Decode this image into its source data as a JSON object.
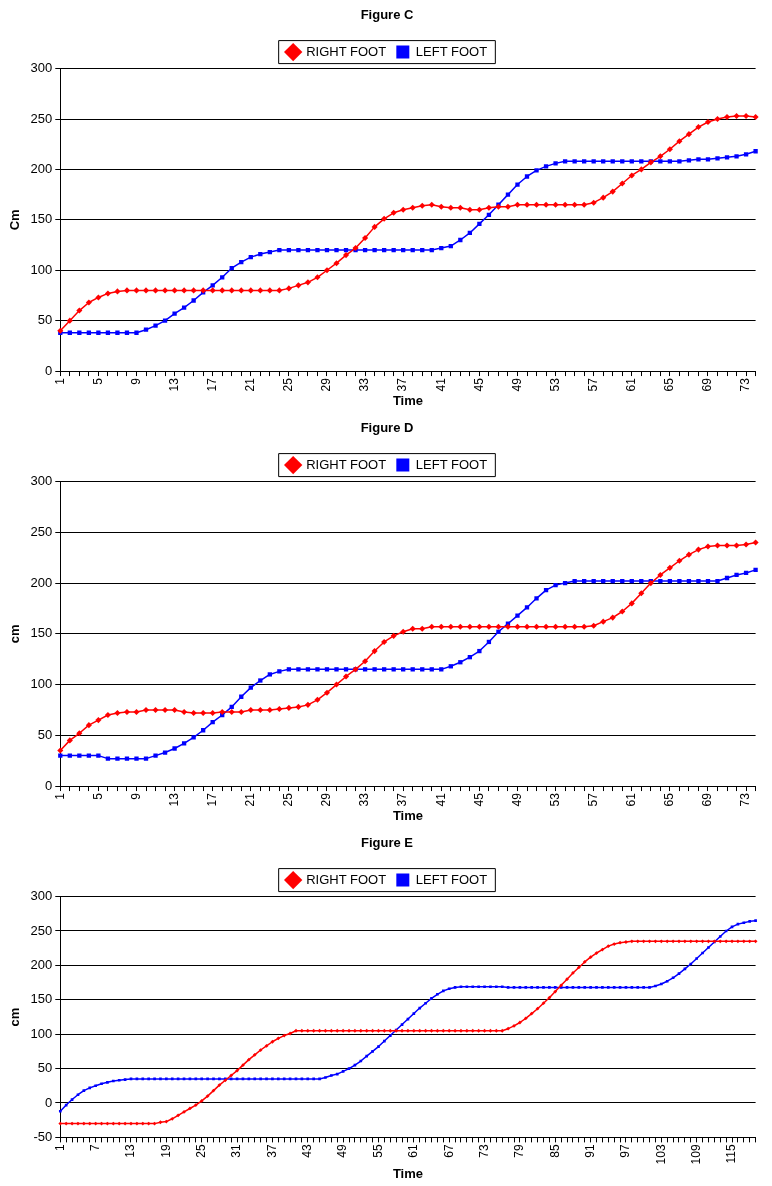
{
  "chart_data": [
    {
      "type": "line",
      "title": "Figure C",
      "xlabel": "Time",
      "ylabel": "Cm",
      "ylim": [
        0,
        300
      ],
      "yticks": [
        0,
        50,
        100,
        150,
        200,
        250,
        300
      ],
      "grid": "y",
      "legend": "top",
      "categories": [
        "1",
        null,
        null,
        null,
        "5",
        null,
        null,
        null,
        "9",
        null,
        null,
        null,
        "13",
        null,
        null,
        null,
        "17",
        null,
        null,
        null,
        "21",
        null,
        null,
        null,
        "25",
        null,
        null,
        null,
        "29",
        null,
        null,
        null,
        "33",
        null,
        null,
        null,
        "37",
        null,
        null,
        null,
        "41",
        null,
        null,
        null,
        "45",
        null,
        null,
        null,
        "49",
        null,
        null,
        null,
        "53",
        null,
        null,
        null,
        "57",
        null,
        null,
        null,
        "61",
        null,
        null,
        null,
        "65",
        null,
        null,
        null,
        "69",
        null,
        null,
        null,
        "73",
        null
      ],
      "series": [
        {
          "name": "RIGHT FOOT",
          "color": "#ff0000",
          "marker": "diamond",
          "values": [
            40,
            50,
            60,
            68,
            73,
            77,
            79,
            80,
            80,
            80,
            80,
            80,
            80,
            80,
            80,
            80,
            80,
            80,
            80,
            80,
            80,
            80,
            80,
            80,
            82,
            85,
            88,
            93,
            100,
            107,
            115,
            122,
            132,
            143,
            151,
            157,
            160,
            162,
            164,
            165,
            163,
            162,
            162,
            160,
            160,
            162,
            163,
            163,
            165,
            165,
            165,
            165,
            165,
            165,
            165,
            165,
            167,
            172,
            178,
            186,
            194,
            200,
            207,
            213,
            220,
            228,
            235,
            242,
            247,
            250,
            252,
            253,
            253,
            252
          ]
        },
        {
          "name": "LEFT FOOT",
          "color": "#0000ff",
          "marker": "square",
          "values": [
            38,
            38,
            38,
            38,
            38,
            38,
            38,
            38,
            38,
            41,
            45,
            50,
            57,
            63,
            70,
            78,
            85,
            93,
            102,
            108,
            113,
            116,
            118,
            120,
            120,
            120,
            120,
            120,
            120,
            120,
            120,
            120,
            120,
            120,
            120,
            120,
            120,
            120,
            120,
            120,
            122,
            124,
            130,
            137,
            146,
            155,
            165,
            175,
            185,
            193,
            199,
            203,
            206,
            208,
            208,
            208,
            208,
            208,
            208,
            208,
            208,
            208,
            208,
            208,
            208,
            208,
            209,
            210,
            210,
            211,
            212,
            213,
            215,
            218
          ]
        }
      ]
    },
    {
      "type": "line",
      "title": "Figure D",
      "xlabel": "Time",
      "ylabel": "cm",
      "ylim": [
        0,
        300
      ],
      "yticks": [
        0,
        50,
        100,
        150,
        200,
        250,
        300
      ],
      "grid": "y",
      "legend": "top",
      "categories": [
        "1",
        null,
        null,
        null,
        "5",
        null,
        null,
        null,
        "9",
        null,
        null,
        null,
        "13",
        null,
        null,
        null,
        "17",
        null,
        null,
        null,
        "21",
        null,
        null,
        null,
        "25",
        null,
        null,
        null,
        "29",
        null,
        null,
        null,
        "33",
        null,
        null,
        null,
        "37",
        null,
        null,
        null,
        "41",
        null,
        null,
        null,
        "45",
        null,
        null,
        null,
        "49",
        null,
        null,
        null,
        "53",
        null,
        null,
        null,
        "57",
        null,
        null,
        null,
        "61",
        null,
        null,
        null,
        "65",
        null,
        null,
        null,
        "69",
        null,
        null,
        null,
        "73",
        null
      ],
      "series": [
        {
          "name": "RIGHT FOOT",
          "color": "#ff0000",
          "marker": "diamond",
          "values": [
            35,
            45,
            52,
            60,
            65,
            70,
            72,
            73,
            73,
            75,
            75,
            75,
            75,
            73,
            72,
            72,
            72,
            73,
            73,
            73,
            75,
            75,
            75,
            76,
            77,
            78,
            80,
            85,
            92,
            100,
            108,
            115,
            123,
            133,
            142,
            148,
            152,
            155,
            155,
            157,
            157,
            157,
            157,
            157,
            157,
            157,
            157,
            157,
            157,
            157,
            157,
            157,
            157,
            157,
            157,
            157,
            158,
            162,
            166,
            172,
            180,
            190,
            200,
            208,
            215,
            222,
            228,
            233,
            236,
            237,
            237,
            237,
            238,
            240
          ]
        },
        {
          "name": "LEFT FOOT",
          "color": "#0000ff",
          "marker": "square",
          "values": [
            30,
            30,
            30,
            30,
            30,
            27,
            27,
            27,
            27,
            27,
            30,
            33,
            37,
            42,
            48,
            55,
            63,
            70,
            78,
            88,
            97,
            104,
            110,
            113,
            115,
            115,
            115,
            115,
            115,
            115,
            115,
            115,
            115,
            115,
            115,
            115,
            115,
            115,
            115,
            115,
            115,
            118,
            122,
            127,
            133,
            142,
            152,
            160,
            168,
            176,
            185,
            193,
            198,
            200,
            202,
            202,
            202,
            202,
            202,
            202,
            202,
            202,
            202,
            202,
            202,
            202,
            202,
            202,
            202,
            202,
            205,
            208,
            210,
            213
          ]
        }
      ]
    },
    {
      "type": "line",
      "title": "Figure E",
      "xlabel": "Time",
      "ylabel": "cm",
      "ylim": [
        -50,
        300
      ],
      "yticks": [
        -50,
        0,
        50,
        100,
        150,
        200,
        250,
        300
      ],
      "grid": "y",
      "legend": "top",
      "categories": [
        "1",
        null,
        null,
        null,
        null,
        null,
        "7",
        null,
        null,
        null,
        null,
        null,
        "13",
        null,
        null,
        null,
        null,
        null,
        "19",
        null,
        null,
        null,
        null,
        null,
        "25",
        null,
        null,
        null,
        null,
        null,
        "31",
        null,
        null,
        null,
        null,
        null,
        "37",
        null,
        null,
        null,
        null,
        null,
        "43",
        null,
        null,
        null,
        null,
        null,
        "49",
        null,
        null,
        null,
        null,
        null,
        "55",
        null,
        null,
        null,
        null,
        null,
        "61",
        null,
        null,
        null,
        null,
        null,
        "67",
        null,
        null,
        null,
        null,
        null,
        "73",
        null,
        null,
        null,
        null,
        null,
        "79",
        null,
        null,
        null,
        null,
        null,
        "85",
        null,
        null,
        null,
        null,
        null,
        "91",
        null,
        null,
        null,
        null,
        null,
        "97",
        null,
        null,
        null,
        null,
        null,
        "103",
        null,
        null,
        null,
        null,
        null,
        "109",
        null,
        null,
        null,
        null,
        null,
        "115",
        null,
        null,
        null,
        null
      ],
      "series": [
        {
          "name": "RIGHT FOOT",
          "color": "#ff0000",
          "marker": "diamond",
          "values": [
            -30,
            -30,
            -30,
            -30,
            -30,
            -30,
            -30,
            -30,
            -30,
            -30,
            -30,
            -30,
            -30,
            -30,
            -30,
            -30,
            -30,
            -28,
            -27,
            -23,
            -18,
            -13,
            -8,
            -3,
            3,
            10,
            18,
            26,
            33,
            40,
            47,
            55,
            63,
            70,
            77,
            83,
            89,
            94,
            98,
            101,
            105,
            105,
            105,
            105,
            105,
            105,
            105,
            105,
            105,
            105,
            105,
            105,
            105,
            105,
            105,
            105,
            105,
            105,
            105,
            105,
            105,
            105,
            105,
            105,
            105,
            105,
            105,
            105,
            105,
            105,
            105,
            105,
            105,
            105,
            105,
            105,
            108,
            112,
            117,
            123,
            130,
            137,
            145,
            153,
            162,
            171,
            180,
            189,
            197,
            205,
            212,
            218,
            223,
            228,
            231,
            233,
            234,
            235,
            235,
            235,
            235,
            235,
            235,
            235,
            235,
            235,
            235,
            235,
            235,
            235,
            235,
            235,
            235,
            235,
            235,
            235,
            235,
            235,
            235
          ]
        },
        {
          "name": "LEFT FOOT",
          "color": "#0000ff",
          "marker": "square",
          "values": [
            -12,
            -3,
            5,
            12,
            18,
            22,
            25,
            28,
            30,
            32,
            33,
            34,
            35,
            35,
            35,
            35,
            35,
            35,
            35,
            35,
            35,
            35,
            35,
            35,
            35,
            35,
            35,
            35,
            35,
            35,
            35,
            35,
            35,
            35,
            35,
            35,
            35,
            35,
            35,
            35,
            35,
            35,
            35,
            35,
            35,
            37,
            40,
            42,
            46,
            50,
            55,
            61,
            68,
            75,
            82,
            90,
            98,
            106,
            114,
            122,
            130,
            138,
            145,
            152,
            158,
            163,
            166,
            168,
            169,
            169,
            169,
            169,
            169,
            169,
            169,
            169,
            168,
            168,
            168,
            168,
            168,
            168,
            168,
            168,
            168,
            168,
            168,
            168,
            168,
            168,
            168,
            168,
            168,
            168,
            168,
            168,
            168,
            168,
            168,
            168,
            168,
            170,
            173,
            177,
            182,
            188,
            195,
            202,
            210,
            218,
            226,
            234,
            242,
            250,
            256,
            260,
            262,
            264,
            265
          ]
        }
      ]
    }
  ]
}
